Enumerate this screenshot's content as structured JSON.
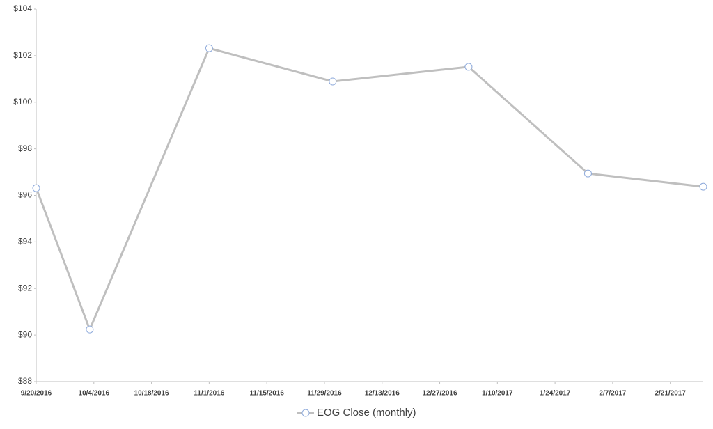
{
  "chart_data": {
    "type": "line",
    "x": [
      "9/20/2016",
      "10/3/2016",
      "11/1/2016",
      "12/1/2016",
      "1/3/2017",
      "2/1/2017",
      "3/1/2017"
    ],
    "series": [
      {
        "name": "EOG Close (monthly)",
        "color": "#bfbfbf",
        "values": [
          96.31,
          90.24,
          102.32,
          100.89,
          101.52,
          96.94,
          96.37
        ]
      }
    ],
    "xlim": [
      "9/20/2016",
      "3/1/2017"
    ],
    "xticks": [
      "9/20/2016",
      "10/4/2016",
      "10/18/2016",
      "11/1/2016",
      "11/15/2016",
      "11/29/2016",
      "12/13/2016",
      "12/27/2016",
      "1/10/2017",
      "1/24/2017",
      "2/7/2017",
      "2/21/2017"
    ],
    "ylim": [
      88,
      104
    ],
    "yticks": [
      {
        "value": 88,
        "label": "$88"
      },
      {
        "value": 90,
        "label": "$90"
      },
      {
        "value": 92,
        "label": "$92"
      },
      {
        "value": 94,
        "label": "$94"
      },
      {
        "value": 96,
        "label": "$96"
      },
      {
        "value": 98,
        "label": "$98"
      },
      {
        "value": 100,
        "label": "$100"
      },
      {
        "value": 102,
        "label": "$102"
      },
      {
        "value": 104,
        "label": "$104"
      }
    ],
    "grid": false,
    "legend": "bottom"
  }
}
